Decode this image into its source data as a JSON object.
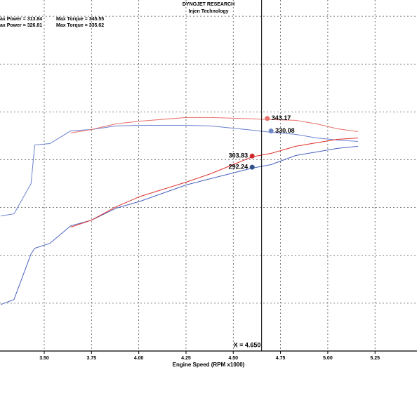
{
  "chart_data": {
    "type": "line",
    "title": "DYNOJET RESEARCH",
    "subtitle": "Injen Technology",
    "stats": [
      [
        "ax Power = 313.84",
        "Max Torque = 345.55"
      ],
      [
        "ax Power = 326.81",
        "Max Torque = 335.62"
      ]
    ],
    "x_label": "Engine Speed (RPM x1000)",
    "xlim": [
      3.266,
      5.472
    ],
    "xticks": [
      {
        "value": 3.5,
        "label": "3.50"
      },
      3.75,
      {
        "value": 4.0,
        "label": "4.00"
      },
      4.25,
      {
        "value": 4.5,
        "label": "4.50"
      },
      4.75,
      {
        "value": 5.0,
        "label": "5.00"
      },
      5.25
    ],
    "ylim": [
      100,
      467
    ],
    "yticks": [
      100,
      150,
      200,
      250,
      300,
      350,
      400,
      450
    ],
    "grid": true,
    "x": [
      3.27,
      3.34,
      3.43,
      3.45,
      3.53,
      3.64,
      3.75,
      3.88,
      4.01,
      4.25,
      4.38,
      4.6,
      4.7,
      4.83,
      4.94,
      5.05,
      5.16
    ],
    "series": [
      {
        "color": "#6a7fd0",
        "values": [
          241.2,
          243.4,
          275.0,
          315.5,
          316.9,
          330.2,
          331.6,
          335.3,
          336.0,
          336.0,
          335.3,
          330.9,
          328.7,
          326.5,
          322.8,
          320.6,
          319.1
        ]
      },
      {
        "color": "#e8706a",
        "values": [
          null,
          null,
          null,
          null,
          null,
          328.0,
          331.6,
          337.5,
          340.4,
          344.1,
          344.1,
          342.7,
          341.9,
          341.2,
          337.5,
          332.4,
          329.4
        ]
      },
      {
        "color": "#4a62c0",
        "values": [
          148.6,
          153.8,
          201.5,
          207.4,
          212.6,
          230.9,
          236.8,
          249.3,
          256.7,
          273.6,
          280.2,
          291.2,
          294.9,
          304.4,
          308.1,
          311.8,
          314.0
        ]
      },
      {
        "color": "#e0302a",
        "values": [
          null,
          null,
          null,
          null,
          null,
          229.5,
          236.8,
          250.8,
          261.8,
          276.5,
          285.3,
          303.0,
          306.6,
          314.0,
          317.7,
          321.3,
          322.8
        ]
      }
    ],
    "markers": [
      {
        "x": 4.68,
        "y": 343.17,
        "color": "#e8706a"
      },
      {
        "x": 4.7,
        "y": 330.08,
        "color": "#7088c8"
      },
      {
        "x": 4.6,
        "y": 303.83,
        "color": "#d02828"
      },
      {
        "x": 4.6,
        "y": 292.24,
        "color": "#34508c"
      }
    ],
    "cursor": {
      "x": 4.65,
      "label": "X = 4.650"
    }
  }
}
